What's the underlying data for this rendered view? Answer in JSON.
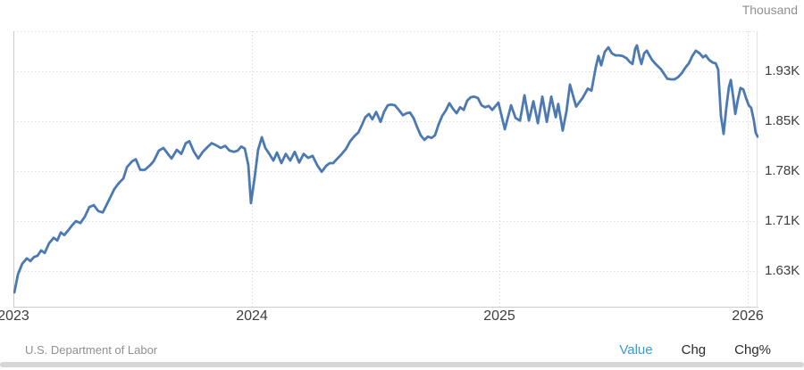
{
  "unit_label": "Thousand",
  "source": "U.S. Department of Labor",
  "footer_tabs": [
    {
      "label": "Value",
      "active": true
    },
    {
      "label": "Chg",
      "active": false
    },
    {
      "label": "Chg%",
      "active": false
    }
  ],
  "colors": {
    "line": "#4d79b3",
    "active_tab": "#3a9ad9",
    "axis_text": "#3d3d3d",
    "muted_text": "#8f8f8f",
    "grid": "#dedede",
    "border": "#cccccc",
    "slider": "#d6d6d6"
  },
  "chart_data": {
    "type": "line",
    "title": "",
    "ylabel": "Thousand",
    "xlabel": "",
    "legend": "none",
    "grid": "dotted",
    "x_ticks": [
      {
        "label": "2023",
        "year": 2023
      },
      {
        "label": "2024",
        "year": 2024
      },
      {
        "label": "2025",
        "year": 2025
      },
      {
        "label": "2026",
        "year": 2026
      }
    ],
    "y_ticks": [
      {
        "label": "1.93K",
        "value": 1.93
      },
      {
        "label": "1.85K",
        "value": 1.855
      },
      {
        "label": "1.78K",
        "value": 1.78
      },
      {
        "label": "1.71K",
        "value": 1.705
      },
      {
        "label": "1.63K",
        "value": 1.63
      }
    ],
    "x_range": [
      2023.0,
      2026.04
    ],
    "y_axis_top_value": 1.99,
    "series": [
      {
        "name": "Value",
        "unit": "K",
        "points": [
          [
            2023.004,
            1.598
          ],
          [
            2023.019,
            1.625
          ],
          [
            2023.037,
            1.641
          ],
          [
            2023.056,
            1.649
          ],
          [
            2023.071,
            1.645
          ],
          [
            2023.086,
            1.651
          ],
          [
            2023.101,
            1.653
          ],
          [
            2023.116,
            1.661
          ],
          [
            2023.131,
            1.657
          ],
          [
            2023.15,
            1.672
          ],
          [
            2023.169,
            1.68
          ],
          [
            2023.184,
            1.676
          ],
          [
            2023.199,
            1.688
          ],
          [
            2023.213,
            1.684
          ],
          [
            2023.232,
            1.692
          ],
          [
            2023.247,
            1.699
          ],
          [
            2023.262,
            1.705
          ],
          [
            2023.281,
            1.702
          ],
          [
            2023.3,
            1.712
          ],
          [
            2023.318,
            1.726
          ],
          [
            2023.337,
            1.729
          ],
          [
            2023.356,
            1.72
          ],
          [
            2023.375,
            1.718
          ],
          [
            2023.401,
            1.737
          ],
          [
            2023.423,
            1.753
          ],
          [
            2023.442,
            1.762
          ],
          [
            2023.461,
            1.769
          ],
          [
            2023.476,
            1.786
          ],
          [
            2023.498,
            1.795
          ],
          [
            2023.513,
            1.798
          ],
          [
            2023.532,
            1.782
          ],
          [
            2023.551,
            1.782
          ],
          [
            2023.573,
            1.789
          ],
          [
            2023.588,
            1.795
          ],
          [
            2023.61,
            1.811
          ],
          [
            2023.629,
            1.815
          ],
          [
            2023.648,
            1.806
          ],
          [
            2023.663,
            1.799
          ],
          [
            2023.685,
            1.812
          ],
          [
            2023.704,
            1.806
          ],
          [
            2023.723,
            1.822
          ],
          [
            2023.738,
            1.825
          ],
          [
            2023.757,
            1.809
          ],
          [
            2023.775,
            1.799
          ],
          [
            2023.794,
            1.809
          ],
          [
            2023.813,
            1.816
          ],
          [
            2023.831,
            1.822
          ],
          [
            2023.85,
            1.819
          ],
          [
            2023.869,
            1.815
          ],
          [
            2023.888,
            1.818
          ],
          [
            2023.906,
            1.811
          ],
          [
            2023.925,
            1.809
          ],
          [
            2023.94,
            1.811
          ],
          [
            2023.955,
            1.817
          ],
          [
            2023.97,
            1.814
          ],
          [
            2023.985,
            1.789
          ],
          [
            2023.996,
            1.732
          ],
          [
            2024.011,
            1.77
          ],
          [
            2024.025,
            1.812
          ],
          [
            2024.04,
            1.831
          ],
          [
            2024.054,
            1.815
          ],
          [
            2024.072,
            1.805
          ],
          [
            2024.087,
            1.796
          ],
          [
            2024.101,
            1.808
          ],
          [
            2024.119,
            1.792
          ],
          [
            2024.137,
            1.806
          ],
          [
            2024.155,
            1.796
          ],
          [
            2024.173,
            1.809
          ],
          [
            2024.191,
            1.793
          ],
          [
            2024.209,
            1.806
          ],
          [
            2024.227,
            1.8
          ],
          [
            2024.245,
            1.803
          ],
          [
            2024.264,
            1.789
          ],
          [
            2024.282,
            1.779
          ],
          [
            2024.3,
            1.788
          ],
          [
            2024.314,
            1.792
          ],
          [
            2024.328,
            1.792
          ],
          [
            2024.343,
            1.798
          ],
          [
            2024.361,
            1.805
          ],
          [
            2024.379,
            1.813
          ],
          [
            2024.397,
            1.825
          ],
          [
            2024.415,
            1.833
          ],
          [
            2024.43,
            1.838
          ],
          [
            2024.444,
            1.849
          ],
          [
            2024.458,
            1.861
          ],
          [
            2024.473,
            1.866
          ],
          [
            2024.487,
            1.858
          ],
          [
            2024.502,
            1.869
          ],
          [
            2024.52,
            1.854
          ],
          [
            2024.534,
            1.869
          ],
          [
            2024.549,
            1.879
          ],
          [
            2024.563,
            1.88
          ],
          [
            2024.578,
            1.879
          ],
          [
            2024.596,
            1.871
          ],
          [
            2024.61,
            1.864
          ],
          [
            2024.625,
            1.867
          ],
          [
            2024.639,
            1.868
          ],
          [
            2024.653,
            1.86
          ],
          [
            2024.668,
            1.846
          ],
          [
            2024.682,
            1.834
          ],
          [
            2024.697,
            1.827
          ],
          [
            2024.711,
            1.832
          ],
          [
            2024.726,
            1.83
          ],
          [
            2024.74,
            1.834
          ],
          [
            2024.754,
            1.85
          ],
          [
            2024.769,
            1.863
          ],
          [
            2024.783,
            1.871
          ],
          [
            2024.798,
            1.882
          ],
          [
            2024.812,
            1.874
          ],
          [
            2024.827,
            1.867
          ],
          [
            2024.841,
            1.876
          ],
          [
            2024.856,
            1.872
          ],
          [
            2024.87,
            1.886
          ],
          [
            2024.884,
            1.891
          ],
          [
            2024.899,
            1.892
          ],
          [
            2024.913,
            1.89
          ],
          [
            2024.928,
            1.879
          ],
          [
            2024.942,
            1.876
          ],
          [
            2024.957,
            1.878
          ],
          [
            2024.971,
            1.872
          ],
          [
            2024.996,
            1.883
          ],
          [
            2025.022,
            1.843
          ],
          [
            2025.047,
            1.879
          ],
          [
            2025.065,
            1.86
          ],
          [
            2025.083,
            1.856
          ],
          [
            2025.101,
            1.894
          ],
          [
            2025.119,
            1.856
          ],
          [
            2025.137,
            1.885
          ],
          [
            2025.155,
            1.852
          ],
          [
            2025.173,
            1.892
          ],
          [
            2025.191,
            1.854
          ],
          [
            2025.209,
            1.892
          ],
          [
            2025.227,
            1.861
          ],
          [
            2025.237,
            1.881
          ],
          [
            2025.255,
            1.841
          ],
          [
            2025.27,
            1.87
          ],
          [
            2025.284,
            1.91
          ],
          [
            2025.309,
            1.877
          ],
          [
            2025.335,
            1.89
          ],
          [
            2025.356,
            1.904
          ],
          [
            2025.371,
            1.901
          ],
          [
            2025.388,
            1.936
          ],
          [
            2025.399,
            1.953
          ],
          [
            2025.41,
            1.939
          ],
          [
            2025.424,
            1.959
          ],
          [
            2025.439,
            1.966
          ],
          [
            2025.453,
            1.957
          ],
          [
            2025.468,
            1.954
          ],
          [
            2025.482,
            1.954
          ],
          [
            2025.496,
            1.953
          ],
          [
            2025.511,
            1.95
          ],
          [
            2025.525,
            1.944
          ],
          [
            2025.536,
            1.941
          ],
          [
            2025.547,
            1.964
          ],
          [
            2025.554,
            1.969
          ],
          [
            2025.565,
            1.95
          ],
          [
            2025.572,
            1.941
          ],
          [
            2025.583,
            1.957
          ],
          [
            2025.594,
            1.961
          ],
          [
            2025.604,
            1.954
          ],
          [
            2025.615,
            1.947
          ],
          [
            2025.629,
            1.941
          ],
          [
            2025.64,
            1.937
          ],
          [
            2025.651,
            1.933
          ],
          [
            2025.665,
            1.925
          ],
          [
            2025.676,
            1.919
          ],
          [
            2025.691,
            1.918
          ],
          [
            2025.705,
            1.918
          ],
          [
            2025.719,
            1.921
          ],
          [
            2025.734,
            1.927
          ],
          [
            2025.748,
            1.935
          ],
          [
            2025.763,
            1.942
          ],
          [
            2025.777,
            1.953
          ],
          [
            2025.791,
            1.961
          ],
          [
            2025.806,
            1.957
          ],
          [
            2025.82,
            1.951
          ],
          [
            2025.831,
            1.954
          ],
          [
            2025.845,
            1.947
          ],
          [
            2025.86,
            1.943
          ],
          [
            2025.871,
            1.942
          ],
          [
            2025.881,
            1.933
          ],
          [
            2025.892,
            1.863
          ],
          [
            2025.903,
            1.836
          ],
          [
            2025.914,
            1.876
          ],
          [
            2025.924,
            1.906
          ],
          [
            2025.932,
            1.917
          ],
          [
            2025.942,
            1.89
          ],
          [
            2025.95,
            1.866
          ],
          [
            2025.96,
            1.887
          ],
          [
            2025.971,
            1.905
          ],
          [
            2025.982,
            1.903
          ],
          [
            2025.993,
            1.89
          ],
          [
            2026.004,
            1.879
          ],
          [
            2026.014,
            1.875
          ],
          [
            2026.025,
            1.856
          ],
          [
            2026.032,
            1.838
          ],
          [
            2026.04,
            1.832
          ]
        ]
      }
    ]
  }
}
